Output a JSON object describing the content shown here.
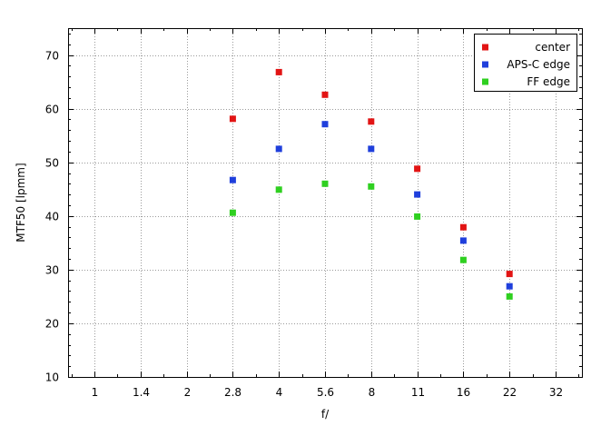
{
  "chart_data": {
    "type": "scatter",
    "title": "",
    "xlabel": "f/",
    "ylabel": "MTF50 [lpmm]",
    "xscale": "log2",
    "x_ticks": [
      "1",
      "1.4",
      "2",
      "2.8",
      "4",
      "5.6",
      "8",
      "11",
      "16",
      "22",
      "32"
    ],
    "xlim": [
      0.73,
      45
    ],
    "ylim": [
      10,
      75
    ],
    "y_ticks": [
      10,
      20,
      30,
      40,
      50,
      60,
      70
    ],
    "grid": true,
    "legend_position": "top-right",
    "series": [
      {
        "name": "center",
        "color": "#e21414",
        "x": [
          2.8,
          4,
          5.6,
          8,
          11,
          16,
          22
        ],
        "y": [
          58.1,
          66.8,
          62.6,
          57.6,
          48.8,
          37.9,
          29.2
        ]
      },
      {
        "name": "APS-C edge",
        "color": "#1f3fdc",
        "x": [
          2.8,
          4,
          5.6,
          8,
          11,
          16,
          22
        ],
        "y": [
          46.7,
          52.5,
          57.1,
          52.5,
          44.0,
          35.4,
          26.9
        ]
      },
      {
        "name": "FF edge",
        "color": "#2fd020",
        "x": [
          2.8,
          4,
          5.6,
          8,
          11,
          16,
          22
        ],
        "y": [
          40.6,
          44.9,
          46.0,
          45.5,
          39.9,
          31.8,
          25.0
        ]
      }
    ]
  }
}
